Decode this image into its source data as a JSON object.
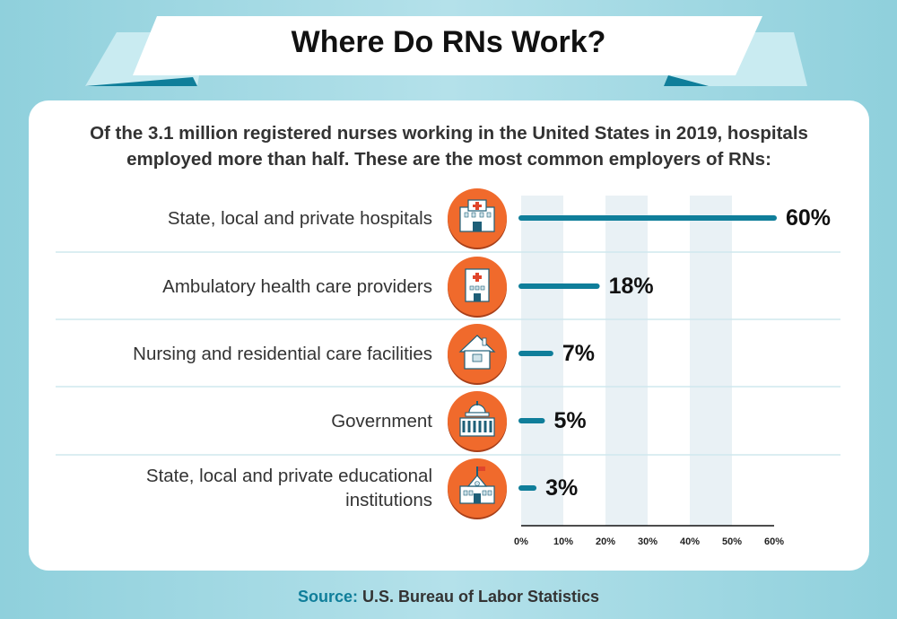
{
  "header": {
    "title": "Where Do RNs Work?"
  },
  "intro": {
    "line1": "Of the 3.1 million registered nurses working in the United States in 2019, hospitals",
    "line2": "employed more than half. These are the most common employers of RNs:"
  },
  "chart_data": {
    "type": "bar",
    "orientation": "horizontal",
    "categories": [
      [
        "State, local and private hospitals"
      ],
      [
        "Ambulatory health care providers"
      ],
      [
        "Nursing and residential care facilities"
      ],
      [
        "Government"
      ],
      [
        "State, local and private educational",
        "institutions"
      ]
    ],
    "icons": [
      "hospital-icon",
      "clinic-icon",
      "house-icon",
      "government-building-icon",
      "school-icon"
    ],
    "values": [
      60,
      18,
      7,
      5,
      3
    ],
    "value_labels": [
      "60%",
      "18%",
      "7%",
      "5%",
      "3%"
    ],
    "x_ticks": [
      0,
      10,
      20,
      30,
      40,
      50,
      60
    ],
    "x_tick_labels": [
      "0%",
      "10%",
      "20%",
      "30%",
      "40%",
      "50%",
      "60%"
    ],
    "xlim": [
      0,
      60
    ],
    "colors": {
      "bar": "#0f7e9a",
      "icon_circle": "#f06a2c",
      "band": "#e9f1f5",
      "separator": "#cfe8ee"
    }
  },
  "footer": {
    "source_label": "Source:",
    "source_text": " U.S. Bureau of Labor Statistics"
  }
}
